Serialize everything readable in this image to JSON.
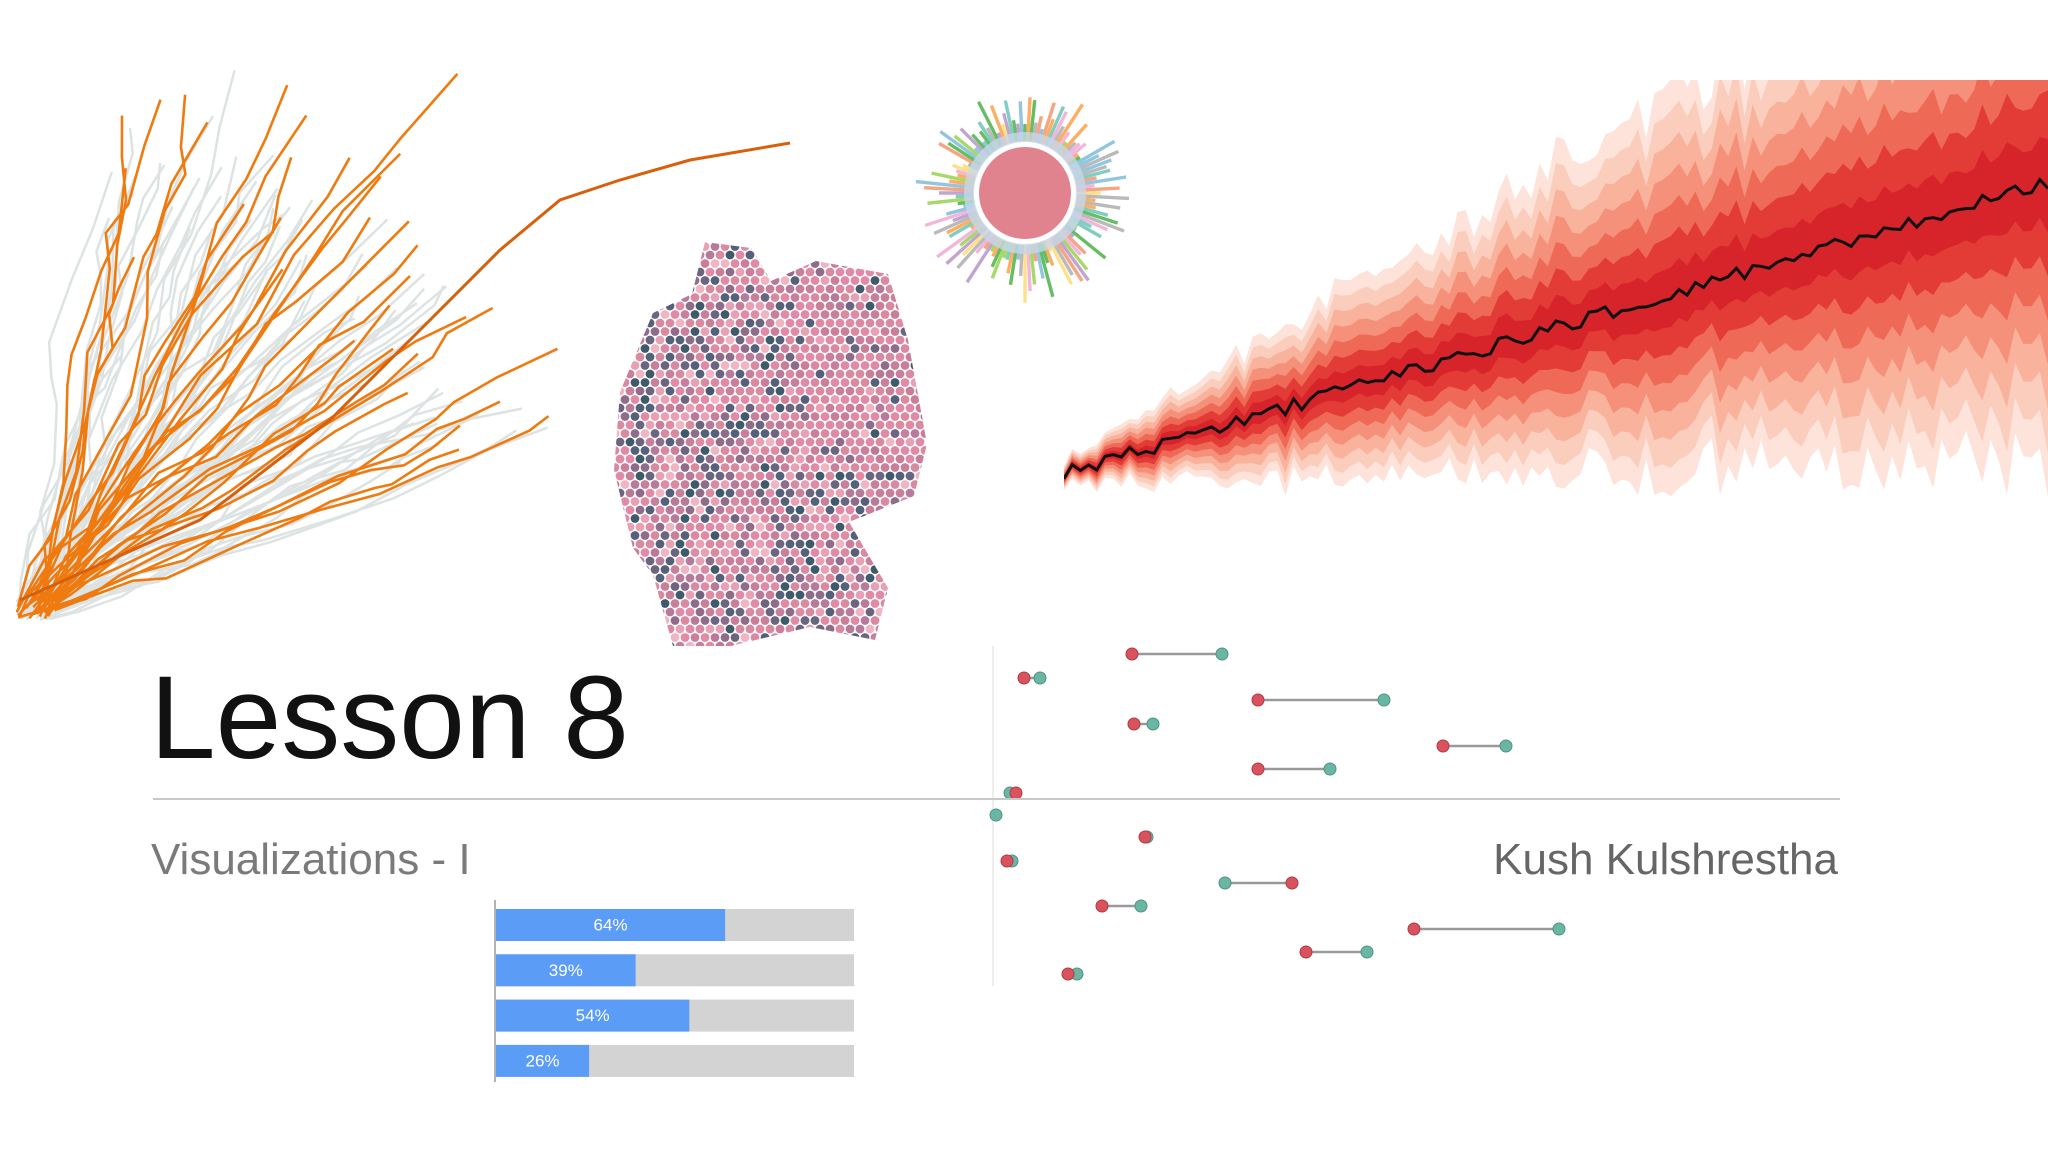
{
  "title": "Lesson 8",
  "subtitle": "Visualizations - I",
  "author": "Kush Kulshrestha",
  "bar_chart": {
    "values": [
      64,
      39,
      54,
      26
    ],
    "value_labels": [
      "64%",
      "39%",
      "54%",
      "26%"
    ],
    "xlim": [
      0,
      100
    ]
  }
}
